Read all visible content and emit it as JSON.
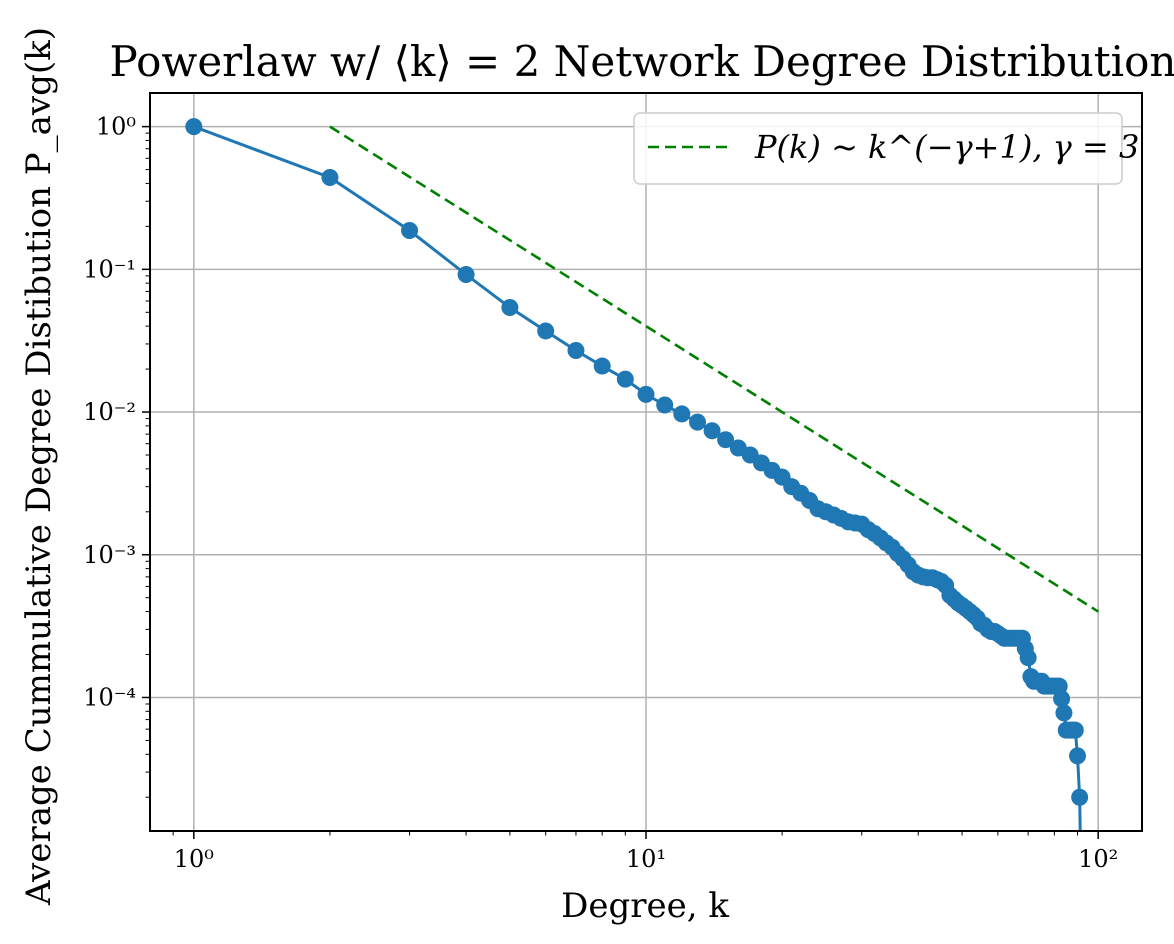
{
  "chart_data": {
    "type": "line",
    "title": "Powerlaw w/ ⟨k⟩ = 2 Network Degree Distribution",
    "xlabel": "Degree, k",
    "ylabel": "Average Cummulative Degree Distibution P_avg(k)",
    "xscale": "log",
    "yscale": "log",
    "xlim": [
      0.8,
      125
    ],
    "ylim": [
      1.16e-05,
      1.72
    ],
    "x_ticks": [
      {
        "value": 1,
        "label": "10⁰"
      },
      {
        "value": 10,
        "label": "10¹"
      },
      {
        "value": 100,
        "label": "10²"
      }
    ],
    "y_ticks": [
      {
        "value": 1,
        "label": "10⁰"
      },
      {
        "value": 0.1,
        "label": "10⁻¹"
      },
      {
        "value": 0.01,
        "label": "10⁻²"
      },
      {
        "value": 0.001,
        "label": "10⁻³"
      },
      {
        "value": 0.0001,
        "label": "10⁻⁴"
      }
    ],
    "grid": true,
    "legend": {
      "placement": "upper right",
      "entries": [
        "P(k) ~ k^(−γ+1),  γ = 3"
      ]
    },
    "series": [
      {
        "name": "",
        "color": "#1f77b4",
        "marker": "circle",
        "line_style": "solid",
        "x": [
          1,
          2,
          3,
          4,
          5,
          6,
          7,
          8,
          9,
          10,
          11,
          12,
          13,
          14,
          15,
          16,
          17,
          18,
          19,
          20,
          21,
          22,
          23,
          24,
          25,
          26,
          27,
          28,
          29,
          30,
          31,
          32,
          33,
          34,
          35,
          36,
          37,
          38,
          39,
          40,
          41,
          42,
          43,
          44,
          45,
          46,
          47,
          48,
          49,
          50,
          51,
          52,
          53,
          54,
          55,
          56,
          57,
          58,
          59,
          60,
          61,
          62,
          63,
          64,
          65,
          66,
          67,
          68,
          69,
          70,
          71,
          72,
          73,
          74,
          75,
          76,
          77,
          78,
          79,
          80,
          81,
          82,
          83,
          84,
          85,
          86,
          87,
          88,
          89,
          90,
          91,
          92
        ],
        "y": [
          1,
          0.44,
          0.187,
          0.092,
          0.054,
          0.037,
          0.027,
          0.021,
          0.017,
          0.0133,
          0.0112,
          0.0097,
          0.0085,
          0.0074,
          0.0064,
          0.0056,
          0.005,
          0.0044,
          0.0039,
          0.0035,
          0.003,
          0.0027,
          0.0024,
          0.0021,
          0.002,
          0.0019,
          0.0018,
          0.0017,
          0.00167,
          0.00164,
          0.0015,
          0.00141,
          0.00131,
          0.00121,
          0.00113,
          0.00102,
          0.00094,
          0.00085,
          0.00076,
          0.00072,
          0.0007,
          0.00069,
          0.00069,
          0.00067,
          0.00065,
          0.00061,
          0.00052,
          0.00049,
          0.00046,
          0.00044,
          0.00042,
          0.0004,
          0.00038,
          0.00036,
          0.00033,
          0.00032,
          0.0003,
          0.00029,
          0.00029,
          0.00028,
          0.00027,
          0.00026,
          0.00026,
          0.00026,
          0.00026,
          0.00026,
          0.00026,
          0.00026,
          0.00022,
          0.00019,
          0.00014,
          0.00013,
          0.00013,
          0.00013,
          0.00013,
          0.00012,
          0.00012,
          0.00012,
          0.00012,
          0.00012,
          0.00012,
          0.00012,
          9.8e-05,
          7.8e-05,
          5.9e-05,
          5.9e-05,
          5.9e-05,
          5.9e-05,
          5.9e-05,
          3.9e-05,
          2e-05,
          1e-06
        ]
      },
      {
        "name": "P(k) ~ k^(−γ+1),  γ = 3",
        "color": "#008000",
        "line_style": "dashed",
        "x": [
          2,
          100
        ],
        "y": [
          1,
          0.0004
        ]
      }
    ]
  }
}
